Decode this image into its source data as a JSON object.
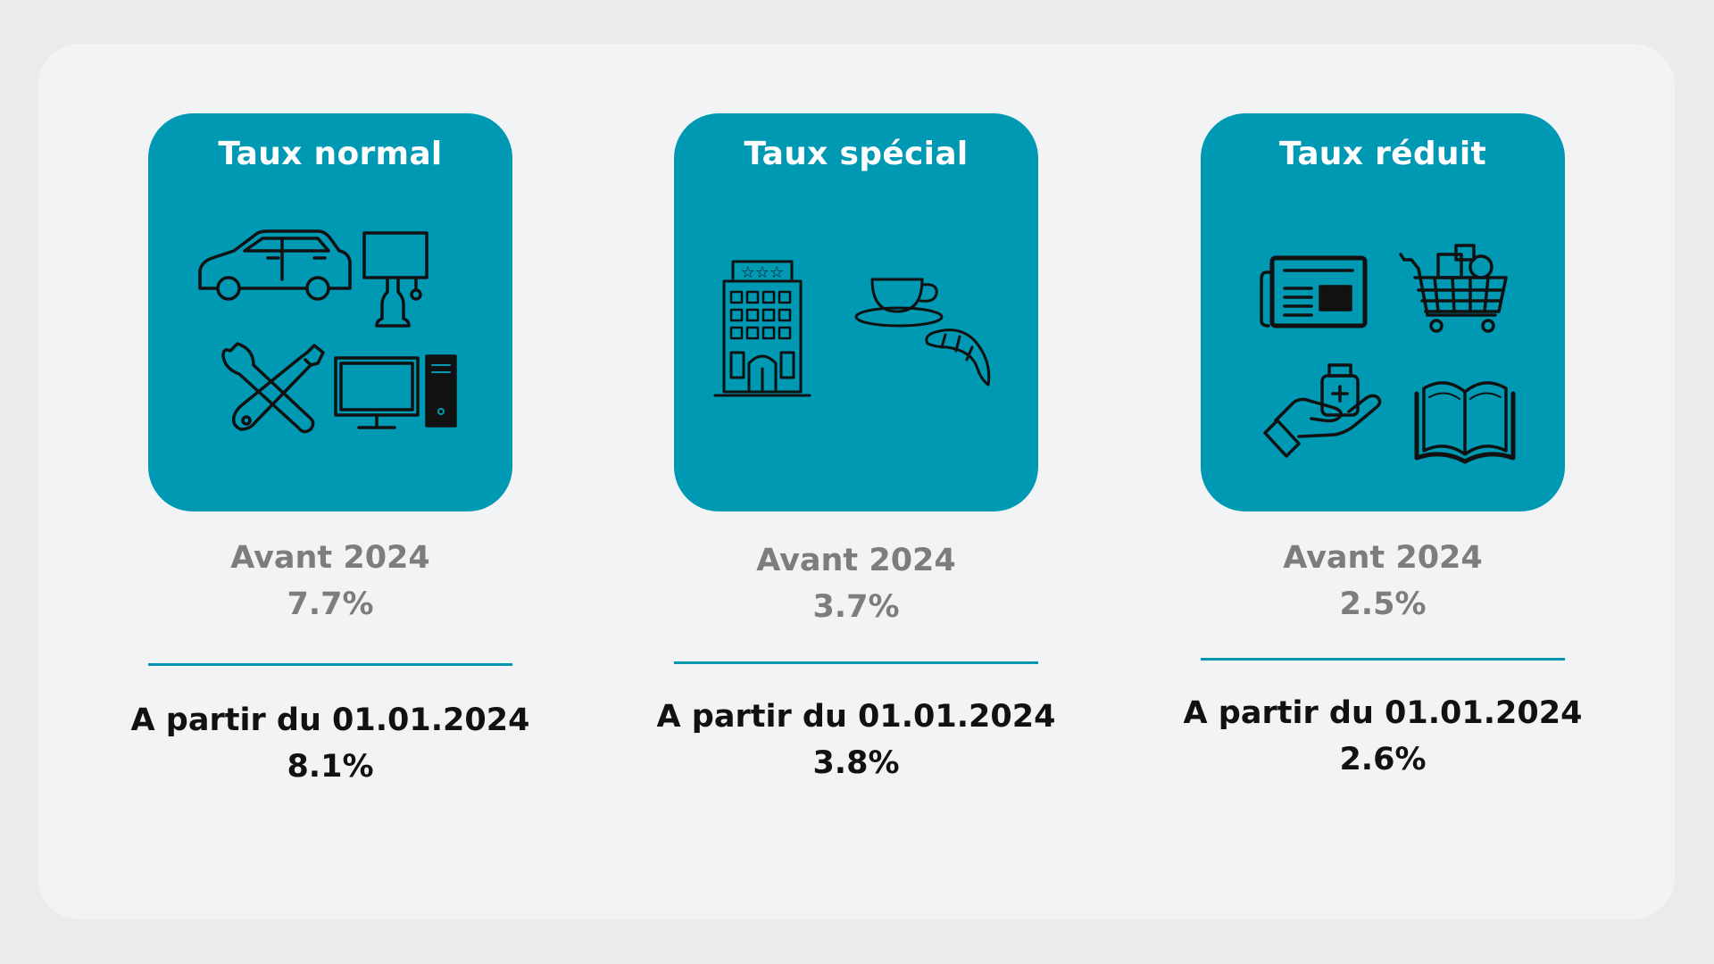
{
  "rates": [
    {
      "title": "Taux normal",
      "before_label": "Avant 2024",
      "before_value": "7.7%",
      "after_label": "A partir du 01.01.2024",
      "after_value": "8.1%",
      "icons": [
        "car-icon",
        "lamp-icon",
        "tools-icon",
        "desktop-computer-icon"
      ]
    },
    {
      "title": "Taux spécial",
      "before_label": "Avant 2024",
      "before_value": "3.7%",
      "after_label": "A partir du 01.01.2024",
      "after_value": "3.8%",
      "icons": [
        "hotel-icon",
        "coffee-cup-icon",
        "croissant-icon"
      ]
    },
    {
      "title": "Taux réduit",
      "before_label": "Avant 2024",
      "before_value": "2.5%",
      "after_label": "A partir du 01.01.2024",
      "after_value": "2.6%",
      "icons": [
        "newspaper-icon",
        "shopping-cart-icon",
        "medicine-hand-icon",
        "book-icon"
      ]
    }
  ],
  "colors": {
    "card": "#0099b4",
    "divider": "#0096b2",
    "muted_text": "#7d7d7d",
    "strong_text": "#111111"
  }
}
